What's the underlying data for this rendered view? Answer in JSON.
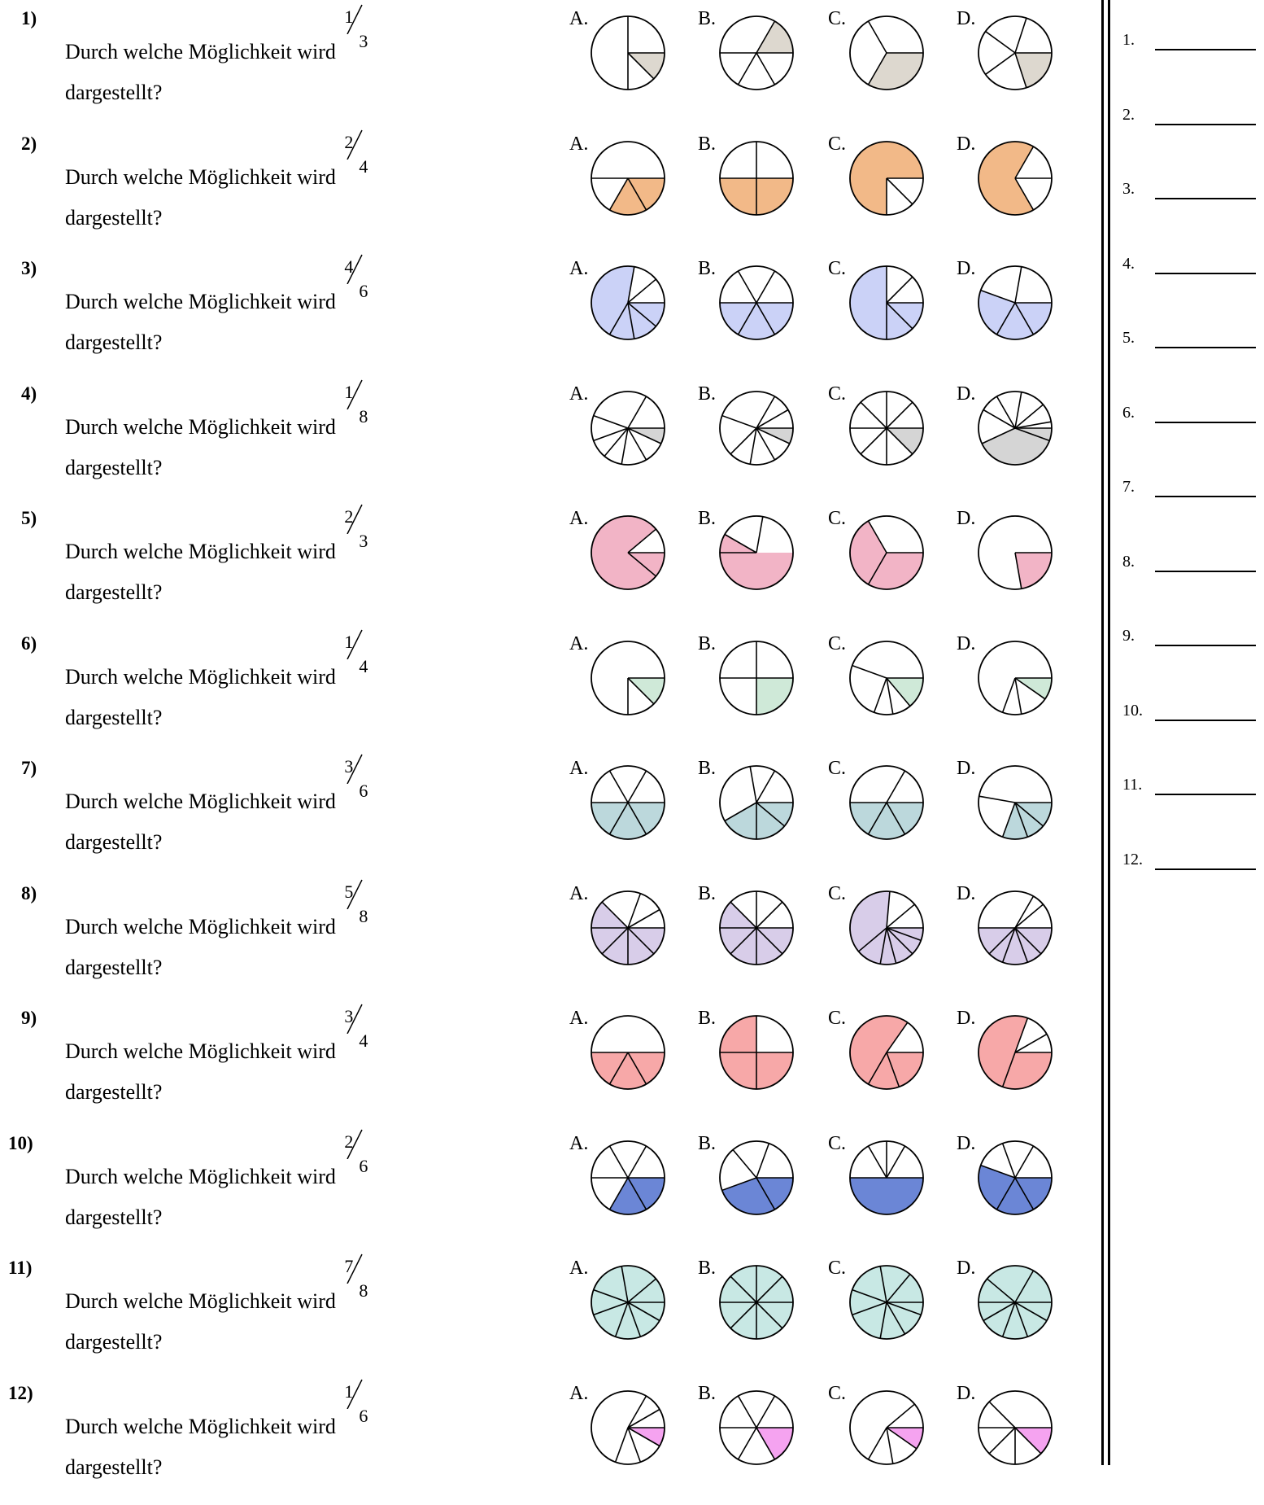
{
  "question_text": "Durch welche Möglichkeit wird",
  "question_text2": "dargestellt?",
  "choice_labels": [
    "A.",
    "B.",
    "C.",
    "D."
  ],
  "questions": [
    {
      "number": "1)",
      "numerator": "1",
      "denominator": "3",
      "color": "#ddd8cf",
      "choices": [
        {
          "label": "A.",
          "parts": [
            {
              "from": 0,
              "to": 45,
              "f": 1
            },
            {
              "from": 45,
              "to": 90,
              "f": 0
            },
            {
              "from": 90,
              "to": 360,
              "f": 0
            }
          ]
        },
        {
          "label": "B.",
          "parts": [
            {
              "from": 0,
              "to": 60,
              "f": 0
            },
            {
              "from": 60,
              "to": 120,
              "f": 0
            },
            {
              "from": 120,
              "to": 180,
              "f": 0
            },
            {
              "from": 300,
              "to": 360,
              "f": 1
            },
            {
              "from": 180,
              "to": 300,
              "f": 0
            }
          ]
        },
        {
          "label": "C.",
          "parts": [
            {
              "from": 0,
              "to": 120,
              "f": 1
            },
            {
              "from": 120,
              "to": 240,
              "f": 0
            },
            {
              "from": 240,
              "to": 360,
              "f": 0
            }
          ]
        },
        {
          "label": "D.",
          "parts": [
            {
              "from": 0,
              "to": 72,
              "f": 1
            },
            {
              "from": 72,
              "to": 144,
              "f": 0
            },
            {
              "from": 144,
              "to": 216,
              "f": 0
            },
            {
              "from": 216,
              "to": 288,
              "f": 0
            },
            {
              "from": 288,
              "to": 360,
              "f": 0
            }
          ]
        }
      ]
    },
    {
      "number": "2)",
      "numerator": "2",
      "denominator": "4",
      "color": "#f2b988",
      "choices": [
        {
          "label": "A.",
          "parts": [
            {
              "from": 0,
              "to": 60,
              "f": 1
            },
            {
              "from": 60,
              "to": 120,
              "f": 1
            },
            {
              "from": 120,
              "to": 180,
              "f": 0
            },
            {
              "from": 180,
              "to": 360,
              "f": 0
            }
          ]
        },
        {
          "label": "B.",
          "parts": [
            {
              "from": 0,
              "to": 90,
              "f": 1
            },
            {
              "from": 90,
              "to": 180,
              "f": 1
            },
            {
              "from": 180,
              "to": 270,
              "f": 0
            },
            {
              "from": 270,
              "to": 360,
              "f": 0
            }
          ]
        },
        {
          "label": "C.",
          "parts": [
            {
              "from": 90,
              "to": 360,
              "f": 1
            },
            {
              "from": 0,
              "to": 45,
              "f": 0
            },
            {
              "from": 45,
              "to": 90,
              "f": 0
            }
          ]
        },
        {
          "label": "D.",
          "parts": [
            {
              "from": 60,
              "to": 300,
              "f": 1
            },
            {
              "from": 300,
              "to": 360,
              "f": 0
            },
            {
              "from": 0,
              "to": 60,
              "f": 0
            }
          ]
        }
      ]
    },
    {
      "number": "3)",
      "numerator": "4",
      "denominator": "6",
      "color": "#cbd2f7",
      "choices": [
        {
          "label": "A.",
          "parts": [
            {
              "from": 0,
              "to": 40,
              "f": 1
            },
            {
              "from": 40,
              "to": 80,
              "f": 1
            },
            {
              "from": 80,
              "to": 120,
              "f": 1
            },
            {
              "from": 120,
              "to": 280,
              "f": 1
            },
            {
              "from": 280,
              "to": 320,
              "f": 0
            },
            {
              "from": 320,
              "to": 360,
              "f": 0
            }
          ]
        },
        {
          "label": "B.",
          "parts": [
            {
              "from": 0,
              "to": 60,
              "f": 1
            },
            {
              "from": 60,
              "to": 120,
              "f": 1
            },
            {
              "from": 120,
              "to": 180,
              "f": 1
            },
            {
              "from": 180,
              "to": 240,
              "f": 0
            },
            {
              "from": 240,
              "to": 300,
              "f": 0
            },
            {
              "from": 300,
              "to": 360,
              "f": 0
            }
          ]
        },
        {
          "label": "C.",
          "parts": [
            {
              "from": 0,
              "to": 45,
              "f": 1
            },
            {
              "from": 45,
              "to": 90,
              "f": 1
            },
            {
              "from": 90,
              "to": 270,
              "f": 1
            },
            {
              "from": 270,
              "to": 315,
              "f": 0
            },
            {
              "from": 315,
              "to": 360,
              "f": 0
            }
          ]
        },
        {
          "label": "D.",
          "parts": [
            {
              "from": 0,
              "to": 60,
              "f": 1
            },
            {
              "from": 60,
              "to": 120,
              "f": 1
            },
            {
              "from": 120,
              "to": 200,
              "f": 1
            },
            {
              "from": 200,
              "to": 280,
              "f": 0
            },
            {
              "from": 280,
              "to": 360,
              "f": 0
            }
          ]
        }
      ]
    },
    {
      "number": "4)",
      "numerator": "1",
      "denominator": "8",
      "color": "#d5d5d5",
      "choices": [
        {
          "label": "A.",
          "parts": [
            {
              "from": 0,
              "to": 25,
              "f": 1
            },
            {
              "from": 25,
              "to": 360,
              "f": 0
            }
          ]
        },
        {
          "label": "B.",
          "parts": [
            {
              "from": 0,
              "to": 25,
              "f": 1
            },
            {
              "from": 25,
              "to": 360,
              "f": 0
            }
          ]
        },
        {
          "label": "C.",
          "parts": [
            {
              "from": 0,
              "to": 45,
              "f": 1
            },
            {
              "from": 45,
              "to": 360,
              "f": 0
            }
          ]
        },
        {
          "label": "D.",
          "parts": [
            {
              "from": 0,
              "to": 155,
              "f": 1
            },
            {
              "from": 155,
              "to": 360,
              "f": 0
            }
          ]
        }
      ]
    },
    {
      "number": "5)",
      "numerator": "2",
      "denominator": "3",
      "color": "#f2b4c6",
      "choices": [
        {
          "label": "A.",
          "parts": [
            {
              "from": 0,
              "to": 40,
              "f": 1
            },
            {
              "from": 40,
              "to": 320,
              "f": 1
            },
            {
              "from": 320,
              "to": 360,
              "f": 0
            }
          ]
        },
        {
          "label": "B.",
          "parts": [
            {
              "from": 0,
              "to": 180,
              "f": 1
            },
            {
              "from": 180,
              "to": 210,
              "f": 1
            },
            {
              "from": 210,
              "to": 280,
              "f": 0
            },
            {
              "from": 280,
              "to": 360,
              "f": 0
            }
          ]
        },
        {
          "label": "C.",
          "parts": [
            {
              "from": 0,
              "to": 120,
              "f": 1
            },
            {
              "from": 120,
              "to": 240,
              "f": 1
            },
            {
              "from": 240,
              "to": 360,
              "f": 0
            }
          ]
        },
        {
          "label": "D.",
          "parts": [
            {
              "from": 0,
              "to": 80,
              "f": 1
            },
            {
              "from": 80,
              "to": 360,
              "f": 0
            }
          ]
        }
      ]
    },
    {
      "number": "6)",
      "numerator": "1",
      "denominator": "4",
      "color": "#cfe9d8",
      "choices": [
        {
          "label": "A.",
          "parts": [
            {
              "from": 0,
              "to": 45,
              "f": 1
            },
            {
              "from": 45,
              "to": 360,
              "f": 0
            }
          ]
        },
        {
          "label": "B.",
          "parts": [
            {
              "from": 0,
              "to": 90,
              "f": 1
            },
            {
              "from": 90,
              "to": 360,
              "f": 0
            }
          ]
        },
        {
          "label": "C.",
          "parts": [
            {
              "from": 0,
              "to": 50,
              "f": 1
            },
            {
              "from": 50,
              "to": 360,
              "f": 0
            }
          ]
        },
        {
          "label": "D.",
          "parts": [
            {
              "from": 0,
              "to": 35,
              "f": 1
            },
            {
              "from": 35,
              "to": 360,
              "f": 0
            }
          ]
        }
      ]
    },
    {
      "number": "7)",
      "numerator": "3",
      "denominator": "6",
      "color": "#bcd8dc",
      "choices": [
        {
          "label": "A.",
          "parts": [
            {
              "from": 0,
              "to": 180,
              "f": 1
            },
            {
              "from": 180,
              "to": 360,
              "f": 0
            }
          ]
        },
        {
          "label": "B.",
          "parts": [
            {
              "from": 0,
              "to": 150,
              "f": 1
            },
            {
              "from": 150,
              "to": 360,
              "f": 0
            }
          ]
        },
        {
          "label": "C.",
          "parts": [
            {
              "from": 0,
              "to": 180,
              "f": 1
            },
            {
              "from": 180,
              "to": 360,
              "f": 0
            }
          ]
        },
        {
          "label": "D.",
          "parts": [
            {
              "from": 0,
              "to": 110,
              "f": 1
            },
            {
              "from": 110,
              "to": 360,
              "f": 0
            }
          ]
        }
      ]
    },
    {
      "number": "8)",
      "numerator": "5",
      "denominator": "8",
      "color": "#d8cde9",
      "choices": [
        {
          "label": "A.",
          "parts": [
            {
              "from": 0,
              "to": 225,
              "f": 1
            },
            {
              "from": 225,
              "to": 360,
              "f": 0
            }
          ]
        },
        {
          "label": "B.",
          "parts": [
            {
              "from": 0,
              "to": 225,
              "f": 1
            },
            {
              "from": 225,
              "to": 360,
              "f": 0
            }
          ]
        },
        {
          "label": "C.",
          "parts": [
            {
              "from": 0,
              "to": 275,
              "f": 1
            },
            {
              "from": 275,
              "to": 360,
              "f": 0
            }
          ]
        },
        {
          "label": "D.",
          "parts": [
            {
              "from": 0,
              "to": 180,
              "f": 1
            },
            {
              "from": 180,
              "to": 360,
              "f": 0
            }
          ]
        }
      ]
    },
    {
      "number": "9)",
      "numerator": "3",
      "denominator": "4",
      "color": "#f7a8a8",
      "choices": [
        {
          "label": "A.",
          "parts": [
            {
              "from": 0,
              "to": 180,
              "f": 1
            },
            {
              "from": 180,
              "to": 360,
              "f": 0
            }
          ]
        },
        {
          "label": "B.",
          "parts": [
            {
              "from": 0,
              "to": 270,
              "f": 1
            },
            {
              "from": 270,
              "to": 360,
              "f": 0
            }
          ]
        },
        {
          "label": "C.",
          "parts": [
            {
              "from": 0,
              "to": 305,
              "f": 1
            },
            {
              "from": 305,
              "to": 360,
              "f": 0
            }
          ]
        },
        {
          "label": "D.",
          "parts": [
            {
              "from": 0,
              "to": 290,
              "f": 1
            },
            {
              "from": 290,
              "to": 360,
              "f": 0
            }
          ]
        }
      ]
    },
    {
      "number": "10)",
      "numerator": "2",
      "denominator": "6",
      "color": "#6b86d6",
      "choices": [
        {
          "label": "A.",
          "parts": [
            {
              "from": 0,
              "to": 120,
              "f": 1
            },
            {
              "from": 120,
              "to": 360,
              "f": 0
            }
          ]
        },
        {
          "label": "B.",
          "parts": [
            {
              "from": 0,
              "to": 160,
              "f": 1
            },
            {
              "from": 160,
              "to": 360,
              "f": 0
            }
          ]
        },
        {
          "label": "C.",
          "parts": [
            {
              "from": 0,
              "to": 180,
              "f": 1
            },
            {
              "from": 180,
              "to": 360,
              "f": 0
            }
          ]
        },
        {
          "label": "D.",
          "parts": [
            {
              "from": 0,
              "to": 200,
              "f": 1
            },
            {
              "from": 200,
              "to": 360,
              "f": 0
            }
          ]
        }
      ]
    },
    {
      "number": "11)",
      "numerator": "7",
      "denominator": "8",
      "color": "#c8e8e4",
      "choices": [
        {
          "label": "A.",
          "parts": [
            {
              "from": 0,
              "to": 360,
              "f": 1
            }
          ]
        },
        {
          "label": "B.",
          "parts": [
            {
              "from": 0,
              "to": 360,
              "f": 1
            }
          ]
        },
        {
          "label": "C.",
          "parts": [
            {
              "from": 0,
              "to": 360,
              "f": 1
            }
          ]
        },
        {
          "label": "D.",
          "parts": [
            {
              "from": 0,
              "to": 360,
              "f": 1
            }
          ]
        }
      ]
    },
    {
      "number": "12)",
      "numerator": "1",
      "denominator": "6",
      "color": "#f5a3f0",
      "choices": [
        {
          "label": "A.",
          "parts": [
            {
              "from": 0,
              "to": 30,
              "f": 1
            },
            {
              "from": 30,
              "to": 360,
              "f": 0
            }
          ]
        },
        {
          "label": "B.",
          "parts": [
            {
              "from": 0,
              "to": 60,
              "f": 1
            },
            {
              "from": 60,
              "to": 360,
              "f": 0
            }
          ]
        },
        {
          "label": "C.",
          "parts": [
            {
              "from": 0,
              "to": 35,
              "f": 1
            },
            {
              "from": 35,
              "to": 360,
              "f": 0
            }
          ]
        },
        {
          "label": "D.",
          "parts": [
            {
              "from": 0,
              "to": 45,
              "f": 1
            },
            {
              "from": 45,
              "to": 360,
              "f": 0
            }
          ]
        }
      ]
    }
  ],
  "answer_numbers": [
    "1.",
    "2.",
    "3.",
    "4.",
    "5.",
    "6.",
    "7.",
    "8.",
    "9.",
    "10.",
    "11.",
    "12."
  ]
}
